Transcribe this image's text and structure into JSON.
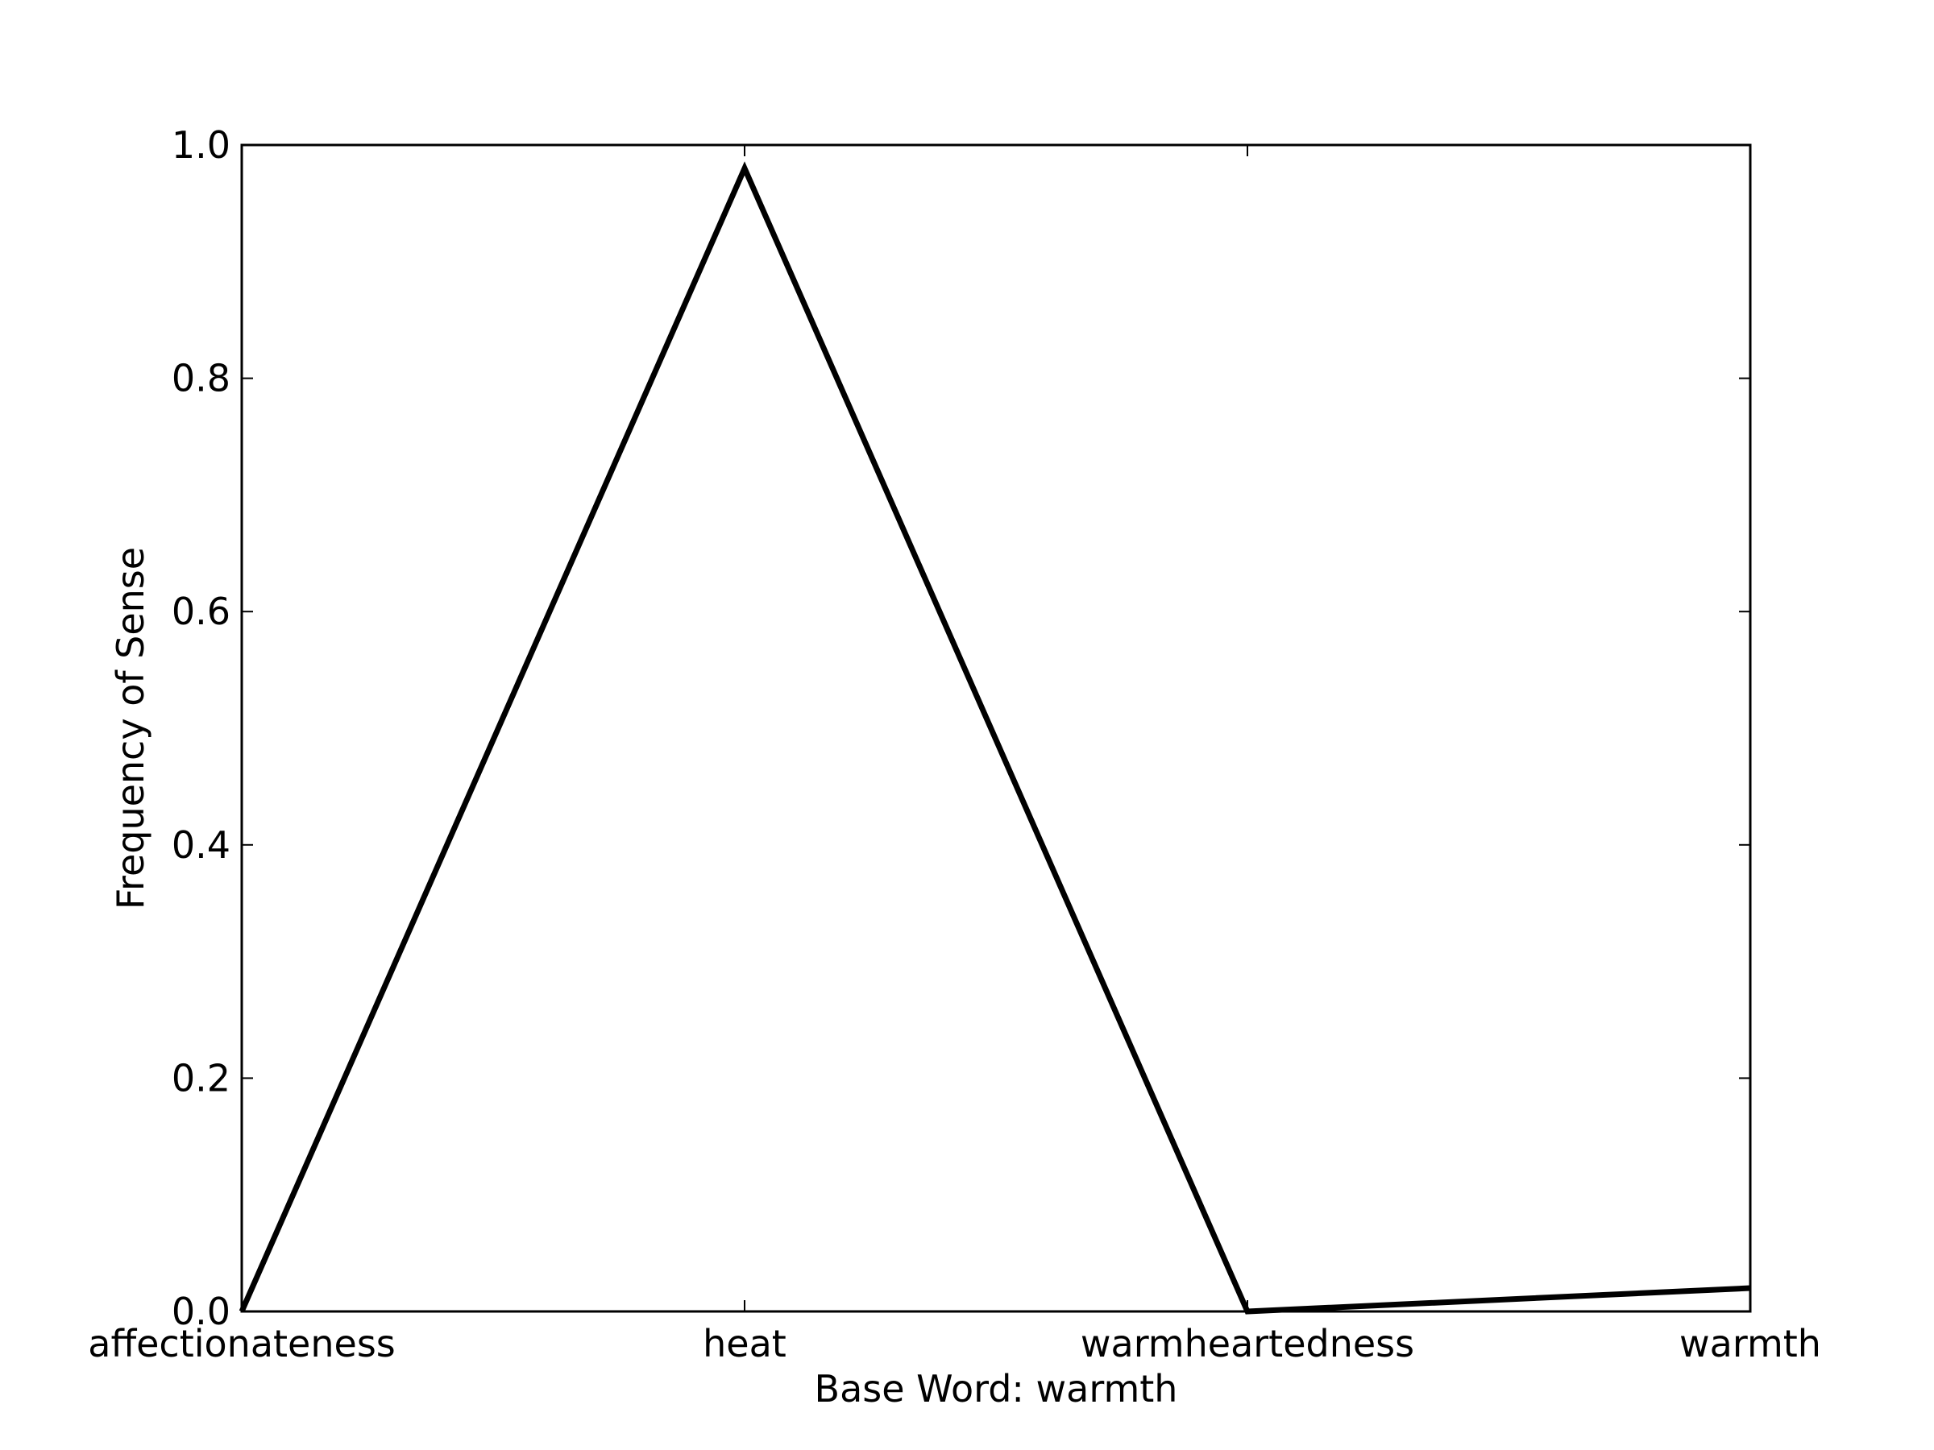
{
  "chart_data": {
    "type": "line",
    "title": "",
    "xlabel": "Base Word: warmth",
    "ylabel": "Frequency of Sense",
    "categories": [
      "affectionateness",
      "heat",
      "warmheartedness",
      "warmth"
    ],
    "series": [
      {
        "values": [
          0.0,
          0.98,
          0.0,
          0.02
        ],
        "color": "#000000"
      }
    ],
    "ylim": [
      0.0,
      1.0
    ],
    "yticks": [
      "0.0",
      "0.2",
      "0.4",
      "0.6",
      "0.8",
      "1.0"
    ],
    "grid": false,
    "legend": "none"
  }
}
